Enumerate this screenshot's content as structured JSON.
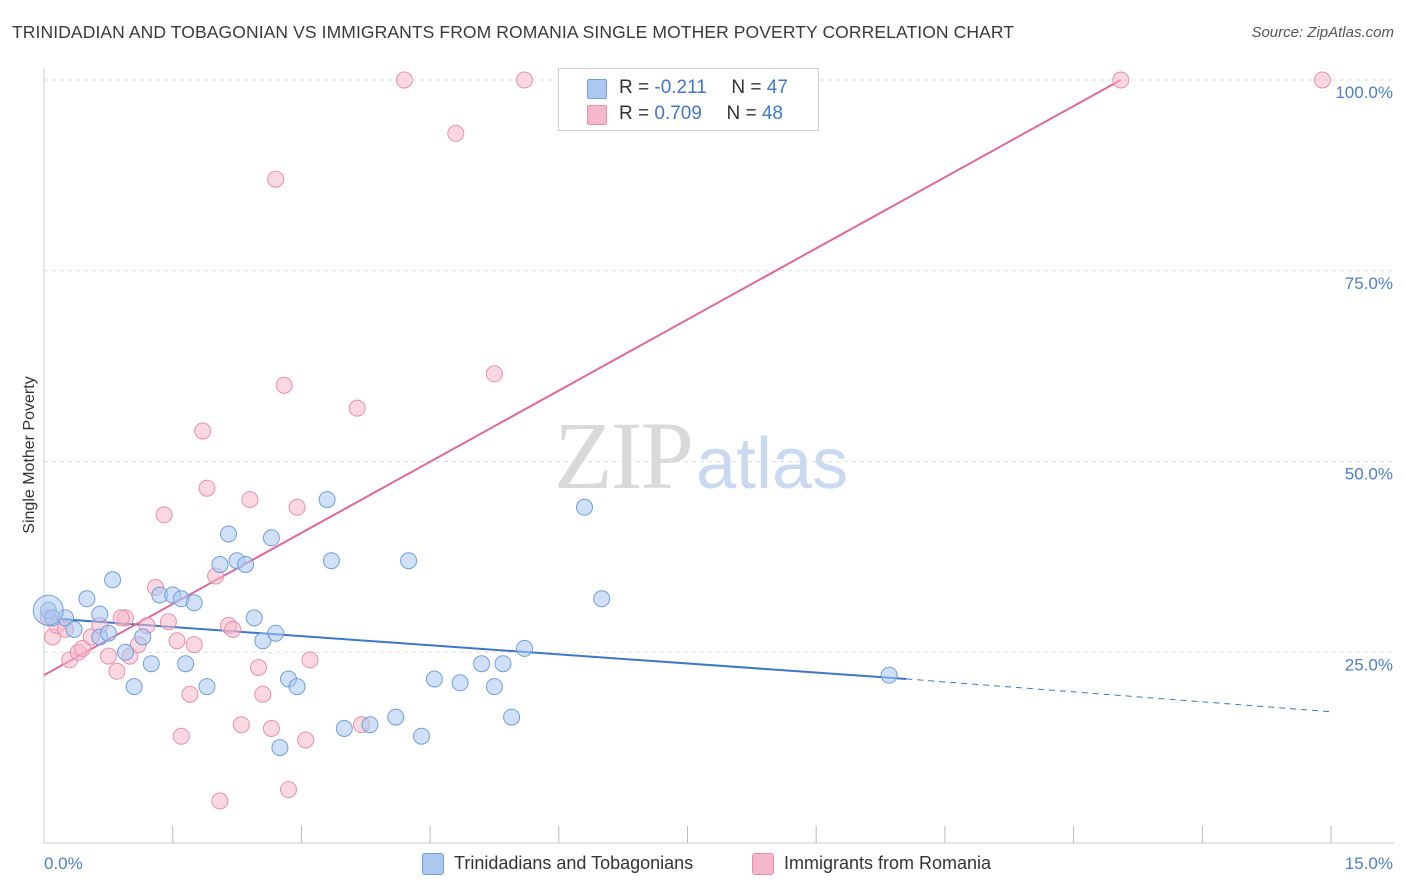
{
  "header": {
    "title": "TRINIDADIAN AND TOBAGONIAN VS IMMIGRANTS FROM ROMANIA SINGLE MOTHER POVERTY CORRELATION CHART",
    "source": "Source: ZipAtlas.com"
  },
  "watermark": {
    "zip": "ZIP",
    "atlas": "atlas"
  },
  "legend": {
    "rows": [
      {
        "r_label": "R = ",
        "r_value": "-0.211",
        "n_label": "N = ",
        "n_value": "47",
        "color": "#aac8f0"
      },
      {
        "r_label": "R = ",
        "r_value": "0.709",
        "n_label": "N = ",
        "n_value": "48",
        "color": "#f5b8cb"
      }
    ]
  },
  "bottom_legend": {
    "items": [
      {
        "label": "Trinidadians and Tobagonians",
        "color": "#aac8f0"
      },
      {
        "label": "Immigrants from Romania",
        "color": "#f5b8cb"
      }
    ]
  },
  "colors": {
    "blue_fill": "#aac8f0",
    "blue_stroke": "#6f9fdc",
    "blue_line": "#3b78cc",
    "pink_fill": "#f5b8cb",
    "pink_stroke": "#e98fab",
    "pink_line": "#e0689a",
    "tick_text": "#4a7fc8",
    "grid": "#dddddd"
  },
  "chart_data": {
    "type": "scatter",
    "title": "TRINIDADIAN AND TOBAGONIAN VS IMMIGRANTS FROM ROMANIA SINGLE MOTHER POVERTY CORRELATION CHART",
    "xlabel": "",
    "ylabel": "Single Mother Poverty",
    "xlim": [
      0,
      15
    ],
    "ylim": [
      0,
      100
    ],
    "x_ticks": [
      0,
      15
    ],
    "x_tick_labels": [
      "0.0%",
      "15.0%"
    ],
    "y_ticks": [
      25,
      50,
      75,
      100
    ],
    "y_tick_labels": [
      "25.0%",
      "50.0%",
      "75.0%",
      "100.0%"
    ],
    "grid": true,
    "legend_position": "top-center",
    "series": [
      {
        "name": "Trinidadians and Tobagonians",
        "r": -0.211,
        "n": 47,
        "points": [
          [
            0.05,
            30.5
          ],
          [
            0.1,
            29.5
          ],
          [
            0.25,
            29.5
          ],
          [
            0.35,
            28.0
          ],
          [
            0.5,
            32.0
          ],
          [
            0.65,
            27.0
          ],
          [
            0.65,
            30.0
          ],
          [
            0.75,
            27.5
          ],
          [
            0.8,
            34.5
          ],
          [
            0.95,
            25.0
          ],
          [
            1.05,
            20.5
          ],
          [
            1.15,
            27.0
          ],
          [
            1.25,
            23.5
          ],
          [
            1.35,
            32.5
          ],
          [
            1.5,
            32.5
          ],
          [
            1.6,
            32.0
          ],
          [
            1.65,
            23.5
          ],
          [
            1.75,
            31.5
          ],
          [
            1.9,
            20.5
          ],
          [
            2.05,
            36.5
          ],
          [
            2.15,
            40.5
          ],
          [
            2.25,
            37.0
          ],
          [
            2.35,
            36.5
          ],
          [
            2.45,
            29.5
          ],
          [
            2.55,
            26.5
          ],
          [
            2.65,
            40.0
          ],
          [
            2.7,
            27.5
          ],
          [
            2.75,
            12.5
          ],
          [
            2.85,
            21.5
          ],
          [
            2.95,
            20.5
          ],
          [
            3.3,
            45.0
          ],
          [
            3.35,
            37.0
          ],
          [
            3.5,
            15.0
          ],
          [
            3.8,
            15.5
          ],
          [
            4.1,
            16.5
          ],
          [
            4.25,
            37.0
          ],
          [
            4.4,
            14.0
          ],
          [
            4.55,
            21.5
          ],
          [
            4.85,
            21.0
          ],
          [
            5.1,
            23.5
          ],
          [
            5.25,
            20.5
          ],
          [
            5.35,
            23.5
          ],
          [
            5.45,
            16.5
          ],
          [
            5.6,
            25.5
          ],
          [
            6.3,
            44.0
          ],
          [
            6.5,
            32.0
          ],
          [
            9.85,
            22.0
          ]
        ],
        "trend": {
          "x": [
            0,
            10.05
          ],
          "y": [
            29.5,
            21.5
          ]
        },
        "trend_extension": {
          "x": [
            10.05,
            15.0
          ],
          "y": [
            21.5,
            17.2
          ]
        }
      },
      {
        "name": "Immigrants from Romania",
        "r": 0.709,
        "n": 48,
        "points": [
          [
            0.05,
            29.5
          ],
          [
            0.1,
            27.0
          ],
          [
            0.15,
            28.5
          ],
          [
            0.25,
            28.0
          ],
          [
            0.3,
            24.0
          ],
          [
            0.4,
            25.0
          ],
          [
            0.45,
            25.5
          ],
          [
            0.55,
            27.0
          ],
          [
            0.65,
            28.5
          ],
          [
            0.75,
            24.5
          ],
          [
            0.85,
            22.5
          ],
          [
            0.95,
            29.5
          ],
          [
            1.0,
            24.5
          ],
          [
            1.1,
            26.0
          ],
          [
            1.2,
            28.5
          ],
          [
            1.3,
            33.5
          ],
          [
            1.4,
            43.0
          ],
          [
            1.55,
            26.5
          ],
          [
            1.6,
            14.0
          ],
          [
            1.7,
            19.5
          ],
          [
            1.75,
            26.0
          ],
          [
            1.85,
            54.0
          ],
          [
            1.9,
            46.5
          ],
          [
            2.0,
            35.0
          ],
          [
            2.05,
            5.5
          ],
          [
            2.15,
            28.5
          ],
          [
            2.2,
            28.0
          ],
          [
            2.3,
            15.5
          ],
          [
            2.4,
            45.0
          ],
          [
            2.5,
            23.0
          ],
          [
            2.55,
            19.5
          ],
          [
            2.65,
            15.0
          ],
          [
            2.7,
            87.0
          ],
          [
            2.8,
            60.0
          ],
          [
            2.85,
            7.0
          ],
          [
            2.95,
            44.0
          ],
          [
            3.05,
            13.5
          ],
          [
            3.1,
            24.0
          ],
          [
            3.65,
            57.0
          ],
          [
            3.7,
            15.5
          ],
          [
            4.2,
            100.0
          ],
          [
            4.8,
            93.0
          ],
          [
            5.25,
            61.5
          ],
          [
            5.6,
            100.0
          ],
          [
            12.55,
            100.0
          ],
          [
            14.9,
            100.0
          ],
          [
            0.9,
            29.5
          ],
          [
            1.45,
            29.0
          ]
        ],
        "trend": {
          "x": [
            0,
            12.55
          ],
          "y": [
            22.0,
            100.0
          ]
        }
      }
    ]
  }
}
